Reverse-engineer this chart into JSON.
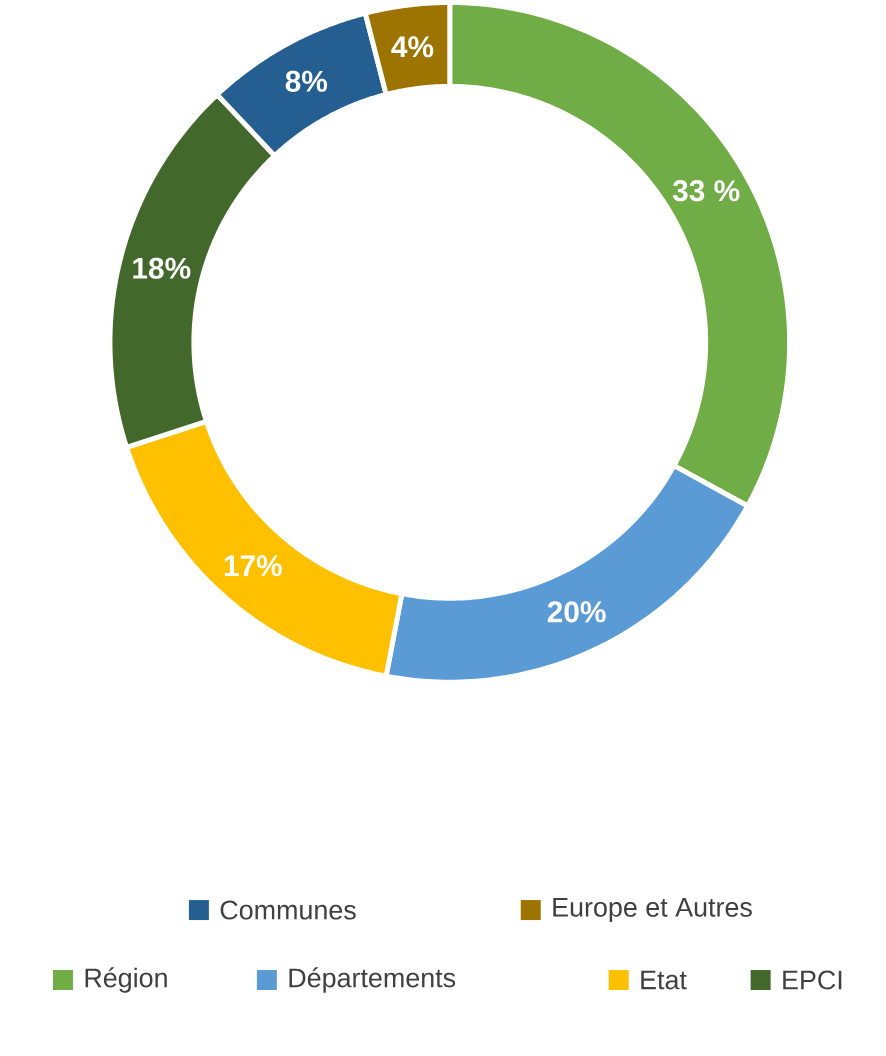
{
  "chart_data": {
    "type": "donut",
    "categories": [
      "Région",
      "Départements",
      "Etat",
      "EPCI",
      "Communes",
      "Europe et Autres"
    ],
    "values": [
      33,
      20,
      17,
      18,
      8,
      4
    ],
    "colors": [
      "#70ad47",
      "#5b9bd5",
      "#ffc000",
      "#43682b",
      "#255e91",
      "#9e7400"
    ],
    "value_labels": [
      "33 %",
      "20%",
      "17%",
      "18%",
      "8%",
      "4%"
    ],
    "legend": "bottom"
  }
}
